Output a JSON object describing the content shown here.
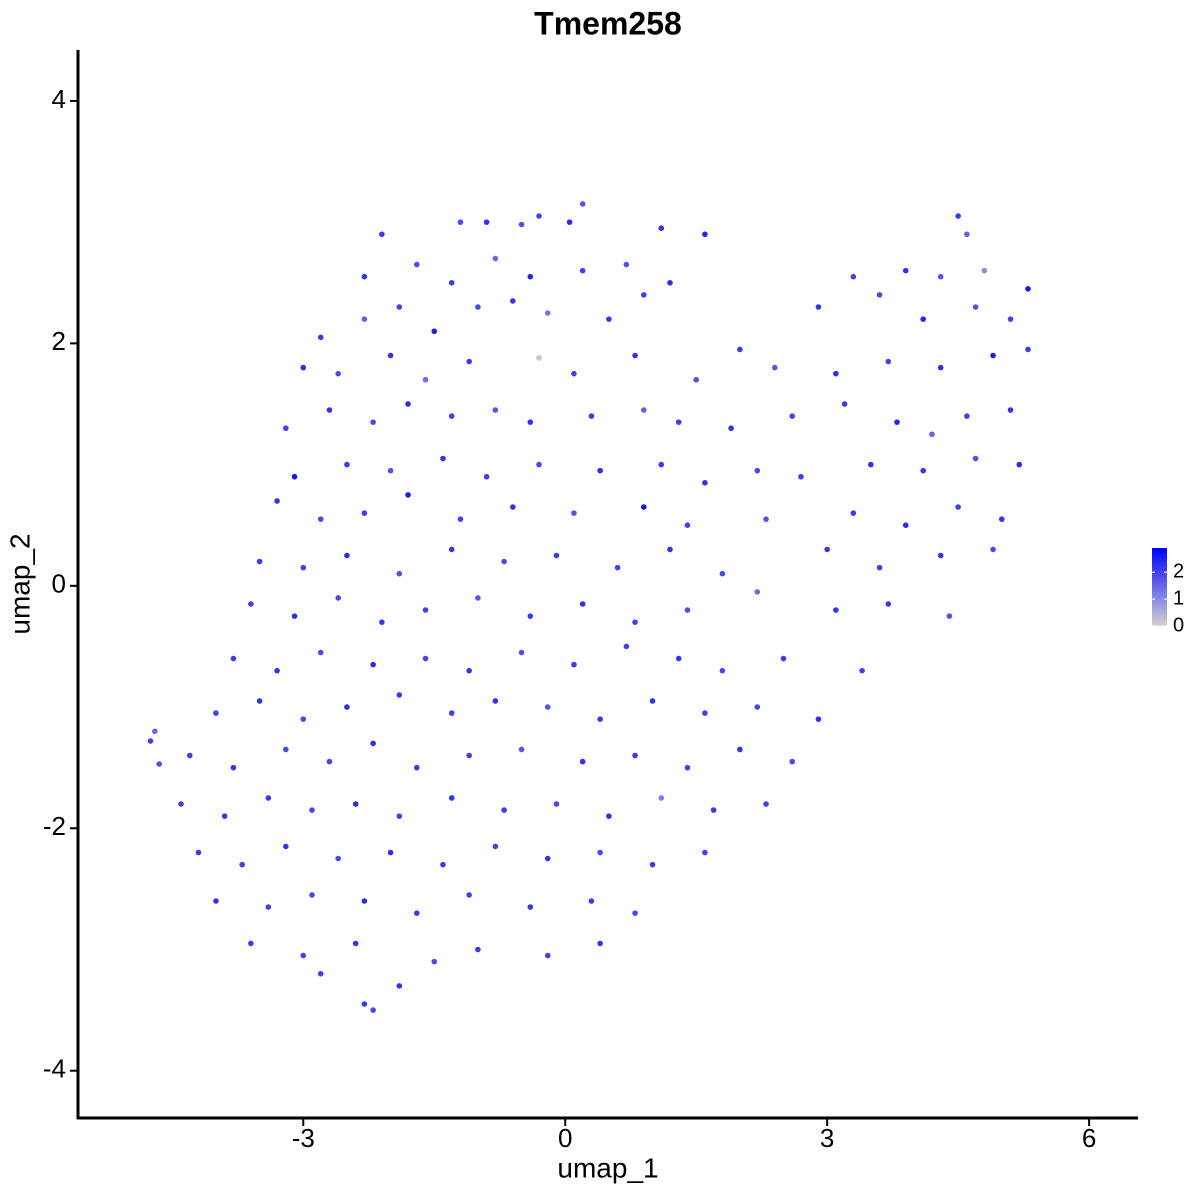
{
  "chart_data": {
    "type": "scatter",
    "title": "Tmem258",
    "x_label": "umap_1",
    "y_label": "umap_2",
    "xlim": [
      -5.58,
      6.56
    ],
    "ylim": [
      -4.39,
      4.42
    ],
    "xticks": [
      -3,
      0,
      3,
      6
    ],
    "yticks": [
      -4,
      -2,
      0,
      2,
      4
    ],
    "color_scale": {
      "low": "#d3d3d3",
      "high": "#0000ff",
      "lim": [
        0,
        2.9
      ],
      "ticks": [
        0,
        1,
        2
      ]
    },
    "x": [
      -2.1,
      -1.2,
      -0.9,
      -0.5,
      -0.3,
      0.2,
      0.05,
      1.1,
      1.6,
      4.5,
      4.6,
      -2.3,
      -1.7,
      -1.3,
      -0.8,
      -0.4,
      0.2,
      0.7,
      1.2,
      3.3,
      3.9,
      4.3,
      4.8,
      5.3,
      -2.8,
      -2.3,
      -1.9,
      -1.5,
      -1.0,
      -0.6,
      -0.2,
      0.5,
      0.9,
      2.9,
      3.6,
      4.1,
      4.7,
      5.1,
      -3.0,
      -2.6,
      -2.0,
      -1.6,
      -1.1,
      -0.3,
      0.1,
      0.8,
      1.5,
      2.0,
      2.4,
      3.1,
      3.7,
      4.3,
      4.9,
      5.3,
      -3.2,
      -2.7,
      -2.2,
      -1.8,
      -1.3,
      -0.8,
      -0.4,
      0.3,
      0.9,
      1.3,
      1.9,
      2.6,
      3.2,
      3.8,
      4.2,
      4.6,
      5.1,
      -3.1,
      -2.5,
      -2.0,
      -1.4,
      -0.9,
      -0.3,
      0.4,
      1.1,
      1.6,
      2.2,
      2.7,
      3.5,
      4.1,
      4.7,
      5.2,
      -3.3,
      -2.8,
      -2.3,
      -1.8,
      -1.2,
      -0.6,
      0.1,
      0.9,
      1.4,
      2.3,
      3.3,
      3.9,
      4.5,
      5.0,
      -3.5,
      -3.0,
      -2.5,
      -1.9,
      -1.3,
      -0.7,
      -0.1,
      0.6,
      1.2,
      1.8,
      3.0,
      3.6,
      4.3,
      4.9,
      -3.6,
      -3.1,
      -2.6,
      -2.1,
      -1.6,
      -1.0,
      -0.4,
      0.2,
      0.8,
      1.4,
      2.2,
      3.1,
      3.7,
      4.4,
      -3.8,
      -3.3,
      -2.8,
      -2.2,
      -1.6,
      -1.1,
      -0.5,
      0.1,
      0.7,
      1.3,
      1.8,
      2.5,
      3.4,
      -4.0,
      -3.5,
      -3.0,
      -2.5,
      -1.9,
      -1.3,
      -0.8,
      -0.2,
      0.4,
      1.0,
      1.6,
      2.2,
      2.9,
      -4.7,
      -4.75,
      -4.65,
      -4.3,
      -3.8,
      -3.2,
      -2.7,
      -2.2,
      -1.7,
      -1.1,
      -0.5,
      0.2,
      0.8,
      1.4,
      2.0,
      2.6,
      -4.4,
      -3.9,
      -3.4,
      -2.9,
      -2.4,
      -1.9,
      -1.3,
      -0.7,
      -0.1,
      0.5,
      1.1,
      1.7,
      2.3,
      -4.2,
      -3.7,
      -3.2,
      -2.6,
      -2.0,
      -1.4,
      -0.8,
      -0.2,
      0.4,
      1.0,
      1.6,
      -4.0,
      -3.4,
      -2.9,
      -2.3,
      -1.7,
      -1.1,
      -0.4,
      0.3,
      0.8,
      -3.6,
      -3.0,
      -2.4,
      -1.5,
      -1.0,
      -0.2,
      0.4,
      -2.8,
      -2.3,
      -1.9,
      -2.2
    ],
    "y": [
      2.9,
      3.0,
      3.0,
      2.98,
      3.05,
      3.15,
      3.0,
      2.95,
      2.9,
      3.05,
      2.9,
      2.55,
      2.65,
      2.5,
      2.7,
      2.55,
      2.6,
      2.65,
      2.5,
      2.55,
      2.6,
      2.55,
      2.6,
      2.45,
      2.05,
      2.2,
      2.3,
      2.1,
      2.3,
      2.35,
      2.25,
      2.2,
      2.4,
      2.3,
      2.4,
      2.2,
      2.3,
      2.2,
      1.8,
      1.75,
      1.9,
      1.7,
      1.85,
      1.88,
      1.75,
      1.9,
      1.7,
      1.95,
      1.8,
      1.75,
      1.85,
      1.8,
      1.9,
      1.95,
      1.3,
      1.45,
      1.35,
      1.5,
      1.4,
      1.45,
      1.35,
      1.4,
      1.45,
      1.35,
      1.3,
      1.4,
      1.5,
      1.35,
      1.25,
      1.4,
      1.45,
      0.9,
      1.0,
      0.95,
      1.05,
      0.9,
      1.0,
      0.95,
      1.0,
      0.85,
      0.95,
      0.9,
      1.0,
      0.95,
      1.05,
      1.0,
      0.7,
      0.55,
      0.6,
      0.75,
      0.55,
      0.65,
      0.6,
      0.65,
      0.5,
      0.55,
      0.6,
      0.5,
      0.65,
      0.55,
      0.2,
      0.15,
      0.25,
      0.1,
      0.3,
      0.2,
      0.25,
      0.15,
      0.3,
      0.1,
      0.3,
      0.15,
      0.25,
      0.3,
      -0.15,
      -0.25,
      -0.1,
      -0.3,
      -0.2,
      -0.1,
      -0.25,
      -0.15,
      -0.3,
      -0.2,
      -0.05,
      -0.2,
      -0.15,
      -0.25,
      -0.6,
      -0.7,
      -0.55,
      -0.65,
      -0.6,
      -0.7,
      -0.55,
      -0.65,
      -0.5,
      -0.6,
      -0.7,
      -0.6,
      -0.7,
      -1.05,
      -0.95,
      -1.1,
      -1.0,
      -0.9,
      -1.05,
      -0.95,
      -1.0,
      -1.1,
      -0.95,
      -1.05,
      -1.0,
      -1.1,
      -1.2,
      -1.28,
      -1.47,
      -1.4,
      -1.5,
      -1.35,
      -1.45,
      -1.3,
      -1.5,
      -1.4,
      -1.35,
      -1.45,
      -1.4,
      -1.5,
      -1.35,
      -1.45,
      -1.8,
      -1.9,
      -1.75,
      -1.85,
      -1.8,
      -1.9,
      -1.75,
      -1.85,
      -1.8,
      -1.9,
      -1.75,
      -1.85,
      -1.8,
      -2.2,
      -2.3,
      -2.15,
      -2.25,
      -2.2,
      -2.3,
      -2.15,
      -2.25,
      -2.2,
      -2.3,
      -2.2,
      -2.6,
      -2.65,
      -2.55,
      -2.6,
      -2.7,
      -2.55,
      -2.65,
      -2.6,
      -2.7,
      -2.95,
      -3.05,
      -2.95,
      -3.1,
      -3.0,
      -3.05,
      -2.95,
      -3.2,
      -3.45,
      -3.3,
      -3.5
    ],
    "expression": [
      2.1,
      1.9,
      2.2,
      1.8,
      2.0,
      1.7,
      2.3,
      2.2,
      2.4,
      2.1,
      1.6,
      2.2,
      1.9,
      2.1,
      1.5,
      2.4,
      2.0,
      1.8,
      2.3,
      2.0,
      2.2,
      1.7,
      1.0,
      2.6,
      2.1,
      1.6,
      2.0,
      2.5,
      1.9,
      2.2,
      1.3,
      2.1,
      2.0,
      2.2,
      1.9,
      2.4,
      1.8,
      2.0,
      2.3,
      1.9,
      2.2,
      1.4,
      2.1,
      0.2,
      2.0,
      2.2,
      1.8,
      2.1,
      1.7,
      2.3,
      2.0,
      2.2,
      2.5,
      2.1,
      2.0,
      2.2,
      1.9,
      2.3,
      2.0,
      1.7,
      2.2,
      2.1,
      1.6,
      2.0,
      2.2,
      1.9,
      2.1,
      2.4,
      1.5,
      2.0,
      2.2,
      2.6,
      2.1,
      1.8,
      2.2,
      2.0,
      1.9,
      2.3,
      2.1,
      2.2,
      1.9,
      2.0,
      2.2,
      2.1,
      1.8,
      2.3,
      2.2,
      1.9,
      2.1,
      2.5,
      2.0,
      2.2,
      1.7,
      2.7,
      2.0,
      1.8,
      2.1,
      2.3,
      2.0,
      2.2,
      2.1,
      2.0,
      2.3,
      1.8,
      2.2,
      1.9,
      2.1,
      2.0,
      2.2,
      1.9,
      2.1,
      2.0,
      2.2,
      1.9,
      2.0,
      2.3,
      1.9,
      2.2,
      2.0,
      1.7,
      2.1,
      2.2,
      2.0,
      1.9,
      1.4,
      2.2,
      2.1,
      1.8,
      2.1,
      2.2,
      1.9,
      2.3,
      2.0,
      2.2,
      1.8,
      2.1,
      2.0,
      2.2,
      1.9,
      2.1,
      2.0,
      2.0,
      2.2,
      1.9,
      2.3,
      2.1,
      2.0,
      2.2,
      1.8,
      2.1,
      2.2,
      2.0,
      1.9,
      2.3,
      1.5,
      2.0,
      1.8,
      2.1,
      2.2,
      1.9,
      2.0,
      2.3,
      2.1,
      2.0,
      1.7,
      2.2,
      2.1,
      2.0,
      2.2,
      1.9,
      2.0,
      2.2,
      2.1,
      1.9,
      2.3,
      2.0,
      2.2,
      2.1,
      1.9,
      2.2,
      1.2,
      2.1,
      2.0,
      2.1,
      2.0,
      2.2,
      1.9,
      2.3,
      2.1,
      2.0,
      2.2,
      1.9,
      2.1,
      2.0,
      2.2,
      2.0,
      1.9,
      2.3,
      2.1,
      2.0,
      2.2,
      2.1,
      1.9,
      2.1,
      2.0,
      2.2,
      1.9,
      2.1,
      2.0,
      2.2,
      2.0,
      2.1,
      2.2,
      1.9
    ]
  }
}
